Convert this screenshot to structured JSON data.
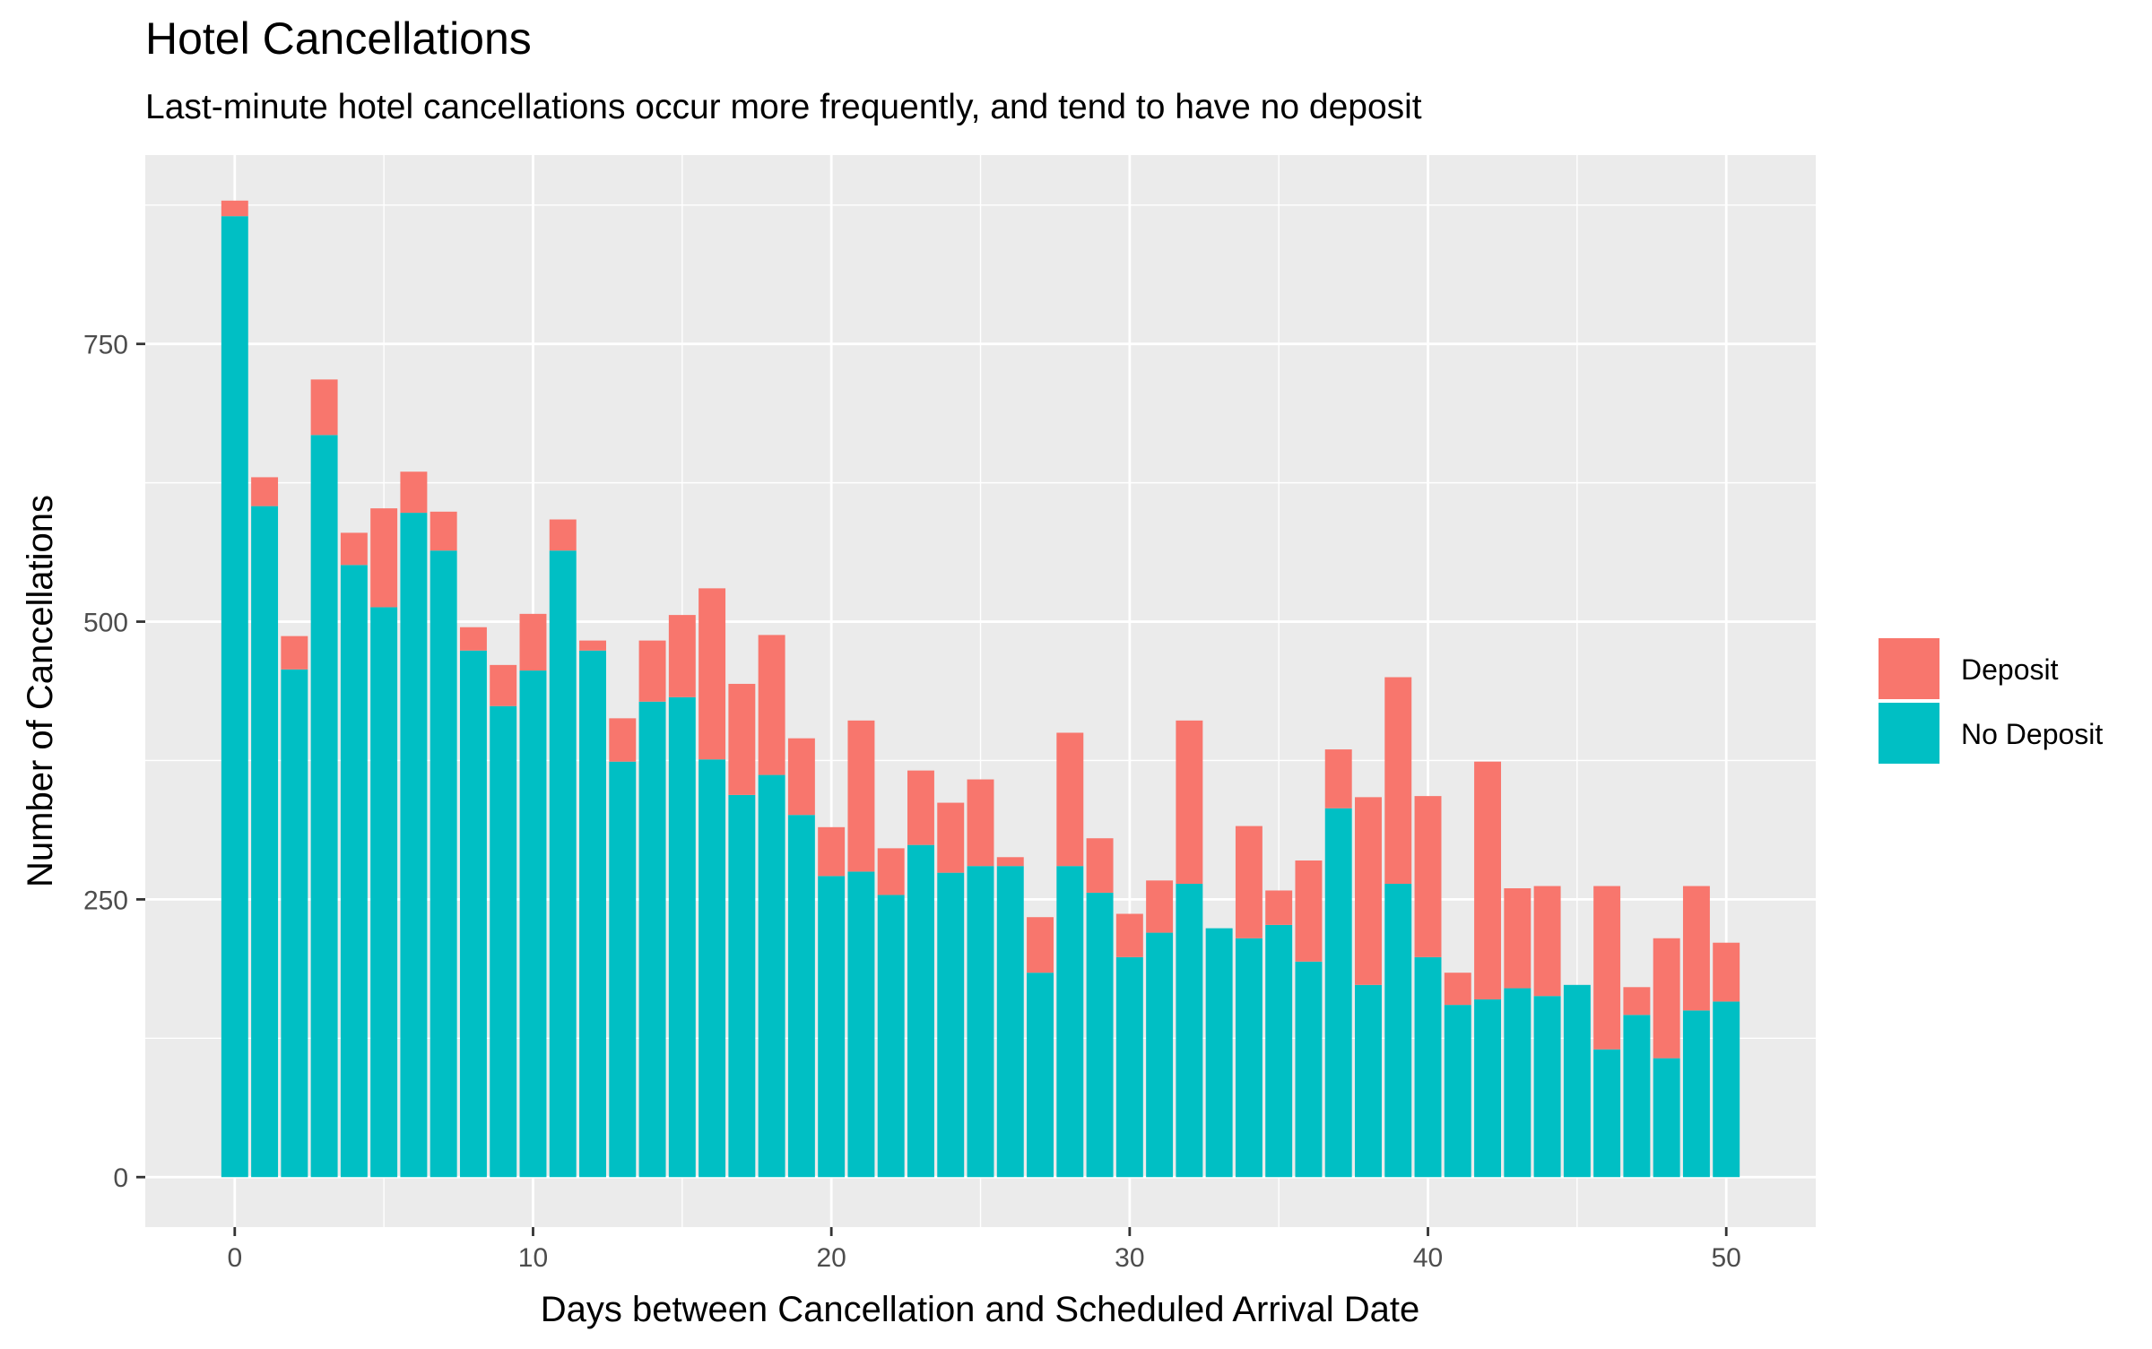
{
  "colors": {
    "panel_bg": "#EBEBEB",
    "grid": "#FFFFFF",
    "tick_text": "#4D4D4D",
    "text": "#000000",
    "deposit": "#F8766D",
    "no_deposit": "#00BFC4"
  },
  "chart_data": {
    "type": "bar",
    "stacked": true,
    "title": "Hotel Cancellations",
    "subtitle": "Last-minute hotel cancellations occur more frequently, and tend to have no deposit",
    "xlabel": "Days between Cancellation and Scheduled Arrival Date",
    "ylabel": "Number of Cancellations",
    "xlim": [
      -3,
      53
    ],
    "ylim": [
      -45,
      920
    ],
    "x_ticks": [
      0,
      10,
      20,
      30,
      40,
      50
    ],
    "x_tick_labels": [
      "0",
      "10",
      "20",
      "30",
      "40",
      "50"
    ],
    "y_ticks": [
      0,
      250,
      500,
      750
    ],
    "y_tick_labels": [
      "0",
      "250",
      "500",
      "750"
    ],
    "grid": true,
    "legend_position": "right",
    "legend_order": [
      "Deposit",
      "No Deposit"
    ],
    "x": [
      0,
      1,
      2,
      3,
      4,
      5,
      6,
      7,
      8,
      9,
      10,
      11,
      12,
      13,
      14,
      15,
      16,
      17,
      18,
      19,
      20,
      21,
      22,
      23,
      24,
      25,
      26,
      27,
      28,
      29,
      30,
      31,
      32,
      33,
      34,
      35,
      36,
      37,
      38,
      39,
      40,
      41,
      42,
      43,
      44,
      45,
      46,
      47,
      48,
      49,
      50
    ],
    "series": [
      {
        "name": "No Deposit",
        "color": "#00BFC4",
        "values": [
          865,
          604,
          457,
          668,
          551,
          513,
          598,
          564,
          474,
          424,
          456,
          564,
          474,
          374,
          428,
          432,
          376,
          344,
          362,
          326,
          271,
          275,
          254,
          299,
          274,
          280,
          280,
          184,
          280,
          256,
          198,
          220,
          264,
          224,
          215,
          227,
          194,
          332,
          173,
          264,
          198,
          155,
          160,
          170,
          163,
          173,
          115,
          146,
          107,
          150,
          158
        ]
      },
      {
        "name": "Deposit",
        "color": "#F8766D",
        "values": [
          14,
          26,
          30,
          50,
          29,
          89,
          37,
          35,
          21,
          37,
          51,
          28,
          9,
          39,
          55,
          74,
          154,
          100,
          126,
          69,
          44,
          136,
          42,
          67,
          63,
          78,
          8,
          50,
          120,
          49,
          39,
          47,
          147,
          0,
          101,
          31,
          91,
          53,
          169,
          186,
          145,
          29,
          214,
          90,
          99,
          0,
          147,
          25,
          108,
          112,
          53
        ]
      }
    ]
  }
}
